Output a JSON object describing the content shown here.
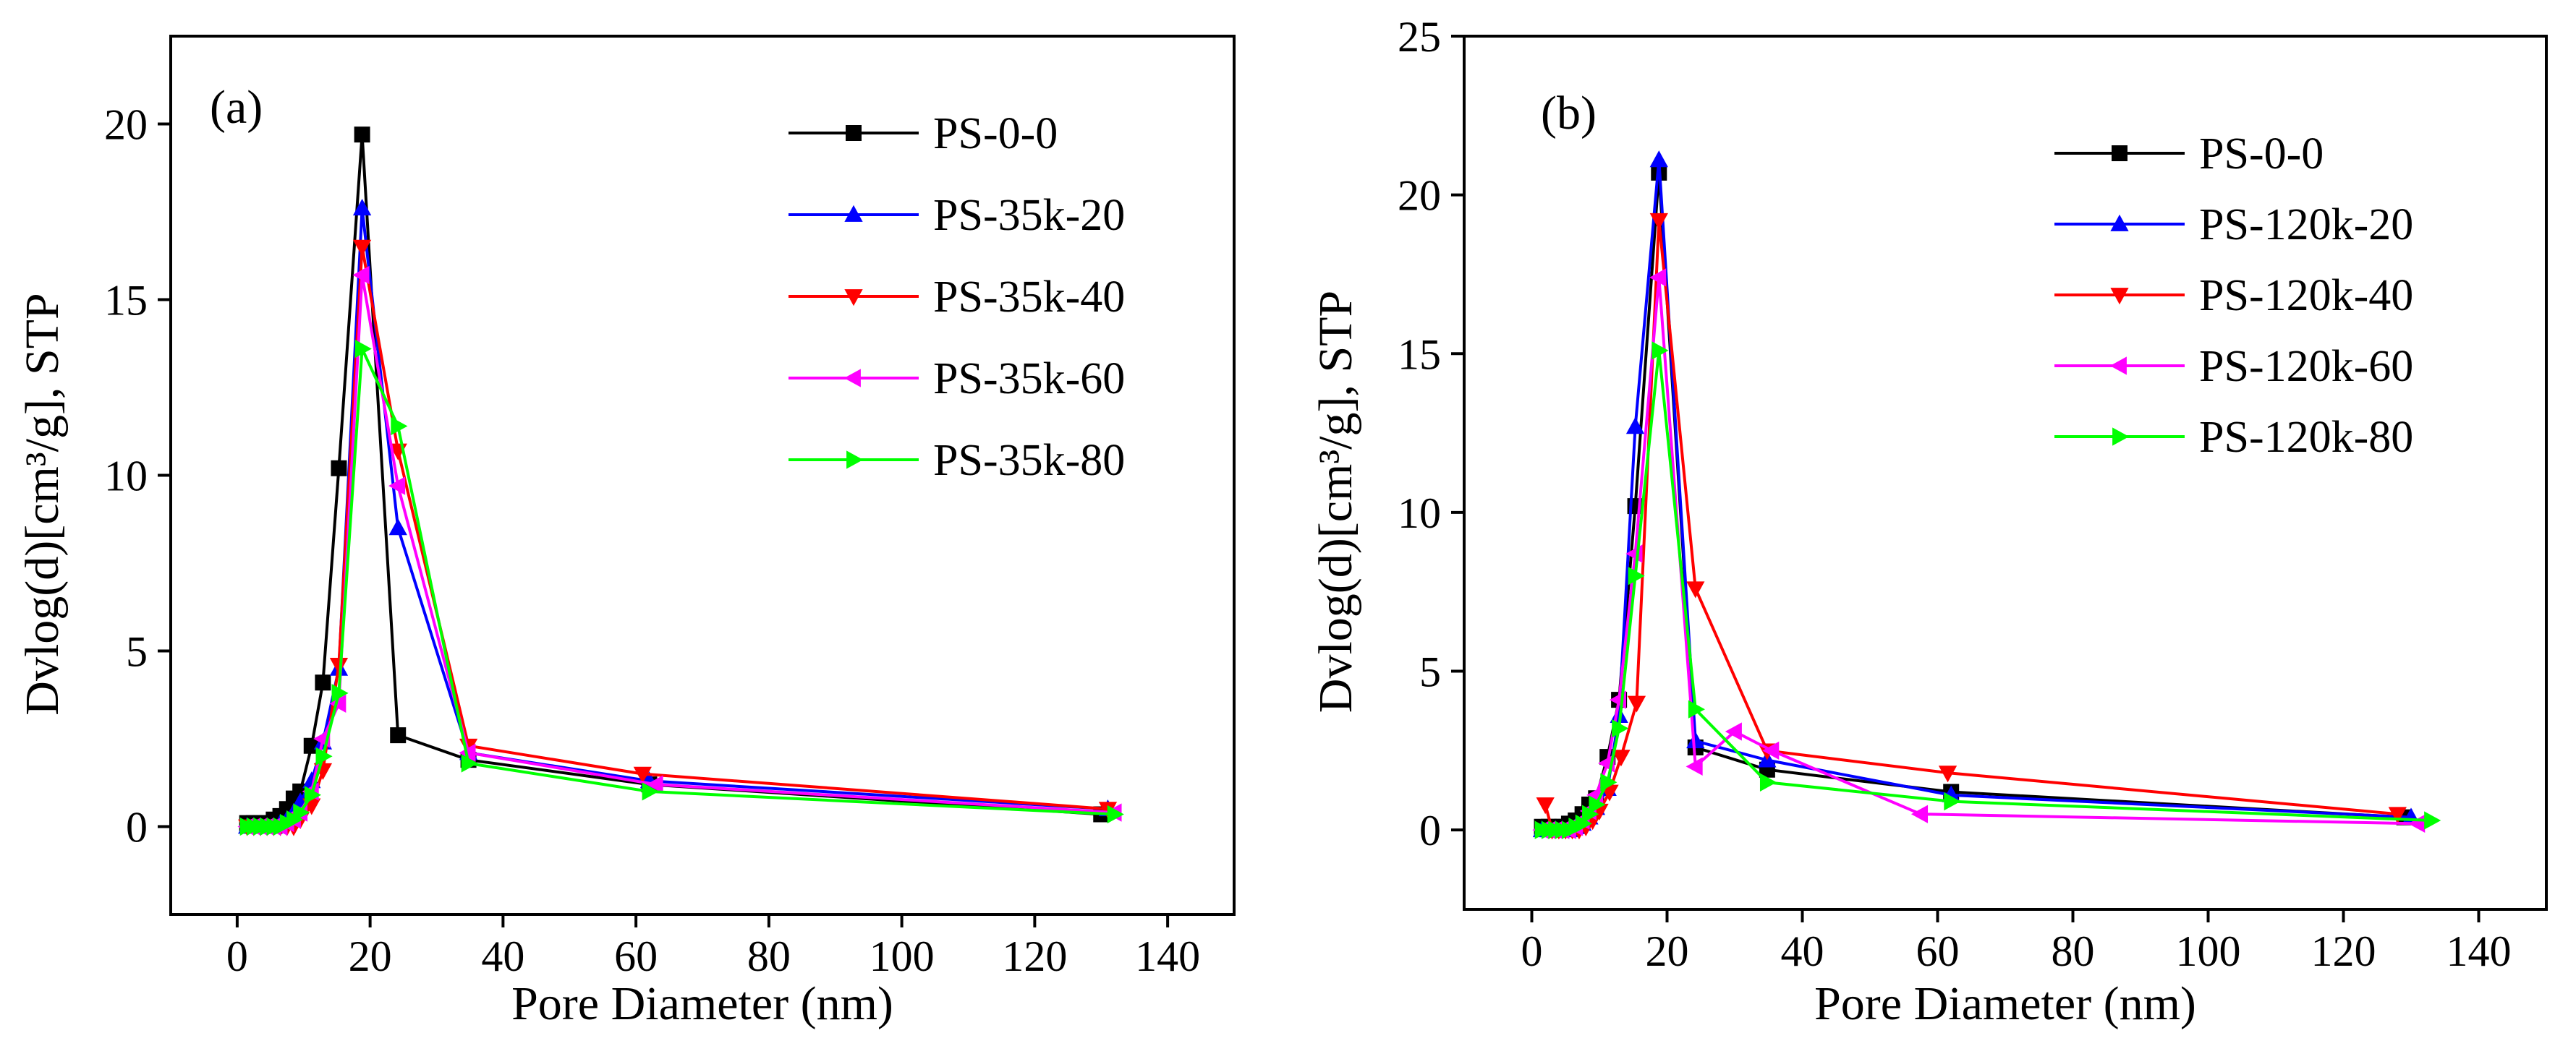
{
  "colors": {
    "black": "#000000",
    "blue": "#0000ff",
    "red": "#ff0000",
    "magenta": "#ff00ff",
    "green": "#00ff00"
  },
  "chart_data": [
    {
      "type": "line",
      "panel_label": "(a)",
      "xlabel": "Pore Diameter (nm)",
      "ylabel": "Dvlog(d)[cm³/g], STP",
      "xlim": [
        -10,
        150
      ],
      "ylim": [
        -2.5,
        22.5
      ],
      "xticks": [
        0,
        20,
        40,
        60,
        80,
        100,
        120,
        140
      ],
      "yticks": [
        0,
        5,
        10,
        15,
        20
      ],
      "grid": false,
      "legend_position": "top-right",
      "series": [
        {
          "name": "PS-0-0",
          "color": "#000000",
          "marker": "square",
          "x": [
            1.5,
            2.5,
            3.5,
            4.5,
            5.5,
            6.5,
            7.5,
            8.5,
            9.5,
            11.2,
            12.9,
            15.3,
            18.8,
            24.2,
            34.8,
            62,
            130
          ],
          "y": [
            0.1,
            0.1,
            0.1,
            0.1,
            0.2,
            0.3,
            0.5,
            0.8,
            1.0,
            2.3,
            4.1,
            10.2,
            19.7,
            2.6,
            1.9,
            1.2,
            0.35
          ]
        },
        {
          "name": "PS-35k-20",
          "color": "#0000ff",
          "marker": "triangle-up",
          "x": [
            1.5,
            2.5,
            3.5,
            4.5,
            5.5,
            6.5,
            7.5,
            8.5,
            9.5,
            11.2,
            12.9,
            15.3,
            18.8,
            24.2,
            34.8,
            62,
            131
          ],
          "y": [
            0.0,
            0.0,
            0.0,
            0.0,
            0.0,
            0.1,
            0.2,
            0.4,
            0.7,
            1.3,
            2.4,
            4.5,
            17.6,
            8.5,
            2.1,
            1.3,
            0.5
          ]
        },
        {
          "name": "PS-35k-40",
          "color": "#ff0000",
          "marker": "triangle-down",
          "x": [
            1.5,
            2.5,
            3.5,
            4.5,
            5.5,
            6.5,
            7.5,
            8.5,
            9.5,
            11.2,
            12.9,
            15.3,
            18.8,
            24.2,
            34.8,
            61,
            131
          ],
          "y": [
            0.0,
            0.0,
            0.0,
            0.0,
            0.0,
            0.0,
            0.0,
            0.0,
            0.2,
            0.6,
            1.6,
            4.6,
            16.5,
            10.7,
            2.3,
            1.5,
            0.5
          ]
        },
        {
          "name": "PS-35k-60",
          "color": "#ff00ff",
          "marker": "triangle-left",
          "x": [
            1.5,
            2.5,
            3.5,
            4.5,
            5.5,
            6.5,
            7.5,
            8.5,
            9.5,
            11.2,
            12.9,
            15.3,
            18.8,
            24.2,
            34.8,
            63,
            132
          ],
          "y": [
            0.0,
            0.0,
            0.0,
            0.0,
            0.0,
            0.0,
            0.1,
            0.2,
            0.4,
            1.0,
            2.5,
            3.5,
            15.7,
            9.7,
            2.1,
            1.2,
            0.4
          ]
        },
        {
          "name": "PS-35k-80",
          "color": "#00ff00",
          "marker": "triangle-right",
          "x": [
            1.5,
            2.5,
            3.5,
            4.5,
            5.5,
            6.5,
            7.5,
            8.5,
            9.5,
            11.2,
            12.9,
            15.3,
            18.8,
            24.2,
            34.8,
            62,
            132
          ],
          "y": [
            0.0,
            0.0,
            0.0,
            0.0,
            0.0,
            0.0,
            0.1,
            0.2,
            0.4,
            0.9,
            2.0,
            3.8,
            13.6,
            11.4,
            1.8,
            1.0,
            0.35
          ]
        }
      ]
    },
    {
      "type": "line",
      "panel_label": "(b)",
      "xlabel": "Pore Diameter (nm)",
      "ylabel": "Dvlog(d)[cm³/g], STP",
      "xlim": [
        -10,
        150
      ],
      "ylim": [
        -2.5,
        25
      ],
      "xticks": [
        0,
        20,
        40,
        60,
        80,
        100,
        120,
        140
      ],
      "yticks": [
        0,
        5,
        10,
        15,
        20,
        25
      ],
      "grid": false,
      "legend_position": "top-right",
      "series": [
        {
          "name": "PS-0-0",
          "color": "#000000",
          "marker": "square",
          "x": [
            1.5,
            2.5,
            3.5,
            4.5,
            5.5,
            6.5,
            7.5,
            8.5,
            9.5,
            11.2,
            12.9,
            15.3,
            18.8,
            24.2,
            34.8,
            62,
            129
          ],
          "y": [
            0.1,
            0.1,
            0.1,
            0.1,
            0.2,
            0.3,
            0.5,
            0.8,
            1.0,
            2.3,
            4.1,
            10.2,
            20.7,
            2.6,
            1.9,
            1.2,
            0.4
          ]
        },
        {
          "name": "PS-120k-20",
          "color": "#0000ff",
          "marker": "triangle-up",
          "x": [
            1.5,
            2.5,
            3.5,
            4.5,
            5.5,
            6.5,
            7.5,
            8.5,
            9.5,
            11.2,
            12.9,
            15.3,
            18.8,
            24.2,
            34.8,
            62,
            130
          ],
          "y": [
            0.0,
            0.0,
            0.0,
            0.0,
            0.0,
            0.1,
            0.2,
            0.4,
            0.7,
            1.3,
            3.6,
            12.7,
            21.1,
            2.8,
            2.2,
            1.1,
            0.4
          ]
        },
        {
          "name": "PS-120k-40",
          "color": "#ff0000",
          "marker": "triangle-down",
          "x": [
            2,
            3,
            4,
            5,
            6,
            7,
            8,
            9,
            10,
            11.5,
            13.2,
            15.5,
            18.8,
            24.2,
            34.8,
            61.5,
            128
          ],
          "y": [
            0.8,
            0.0,
            0.0,
            0.0,
            0.0,
            0.0,
            0.1,
            0.3,
            0.6,
            1.2,
            2.3,
            4.0,
            19.2,
            7.6,
            2.5,
            1.8,
            0.5
          ]
        },
        {
          "name": "PS-120k-60",
          "color": "#ff00ff",
          "marker": "triangle-left",
          "x": [
            1.5,
            2.5,
            3.5,
            4.5,
            5.5,
            6.5,
            7.5,
            8.5,
            9.5,
            11.2,
            12.9,
            15.3,
            18.8,
            24.2,
            30,
            35.5,
            57.5,
            131
          ],
          "y": [
            0.0,
            0.0,
            0.0,
            0.0,
            0.0,
            0.1,
            0.3,
            0.6,
            1.1,
            2.1,
            4.1,
            8.7,
            17.4,
            2.0,
            3.1,
            2.5,
            0.5,
            0.2
          ]
        },
        {
          "name": "PS-120k-80",
          "color": "#00ff00",
          "marker": "triangle-right",
          "x": [
            1.5,
            2.5,
            3.5,
            4.5,
            5.5,
            6.5,
            7.5,
            8.5,
            9.5,
            11.2,
            12.9,
            15.3,
            18.8,
            24.2,
            34.8,
            62,
            133
          ],
          "y": [
            0.0,
            0.0,
            0.0,
            0.0,
            0.0,
            0.1,
            0.2,
            0.5,
            0.8,
            1.5,
            3.2,
            8.0,
            15.1,
            3.8,
            1.5,
            0.9,
            0.3
          ]
        }
      ]
    }
  ]
}
